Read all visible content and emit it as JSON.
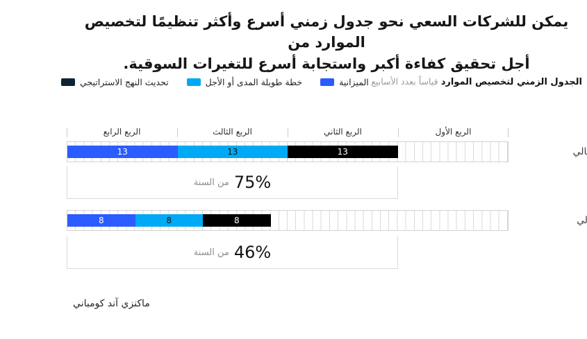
{
  "title": {
    "lines": [
      "يمكن للشركات السعي نحو جدول زمني أسرع وأكثر تنظيمًا لتخصيص الموارد من",
      "أجل تحقيق كفاءة أكبر واستجابة أسرع للتغيرات السوقية."
    ]
  },
  "header": {
    "bold": "الجدول الزمني لتخصيص الموارد",
    "muted": "قياساً بعدد الأسابيع"
  },
  "legend": {
    "items": [
      {
        "label": "الميزانية",
        "color": "#2a5cff"
      },
      {
        "label": "خطة طويلة المدى أو الأجل",
        "color": "#00a9f4"
      },
      {
        "label": "تحديث النهج الاستراتيجي",
        "color": "#0e2433"
      }
    ]
  },
  "source": "ماكنزي آند كومباني",
  "chart_data": {
    "type": "bar",
    "subtype": "rtl-stacked-timeline",
    "unit": "أسابيع",
    "track_total_weeks": 52,
    "quarters_left_to_right": [
      "الربع الرابع",
      "الربع الثالث",
      "الربع الثاني",
      "الربع الأول"
    ],
    "grid": true,
    "rows": [
      {
        "label": "الحالي",
        "total_weeks": 39,
        "percent_of_year": "75%",
        "percent_suffix": "من السنة",
        "segments_left_to_right": [
          {
            "series": "الميزانية",
            "weeks": 13,
            "color": "#2a5cff",
            "label_color": "#ffffff"
          },
          {
            "series": "خطة طويلة المدى أو الأجل",
            "weeks": 13,
            "color": "#00a9f4",
            "label_color": "#111111"
          },
          {
            "series": "تحديث النهج الاستراتيجي",
            "weeks": 13,
            "color": "#000000",
            "label_color": "#ffffff"
          }
        ]
      },
      {
        "label": "مثالي",
        "total_weeks": 24,
        "percent_of_year": "46%",
        "percent_suffix": "من السنة",
        "segments_left_to_right": [
          {
            "series": "الميزانية",
            "weeks": 8,
            "color": "#2a5cff",
            "label_color": "#ffffff"
          },
          {
            "series": "خطة طويلة المدى أو الأجل",
            "weeks": 8,
            "color": "#00a9f4",
            "label_color": "#111111"
          },
          {
            "series": "تحديث النهج الاستراتيجي",
            "weeks": 8,
            "color": "#000000",
            "label_color": "#ffffff"
          }
        ]
      }
    ]
  }
}
